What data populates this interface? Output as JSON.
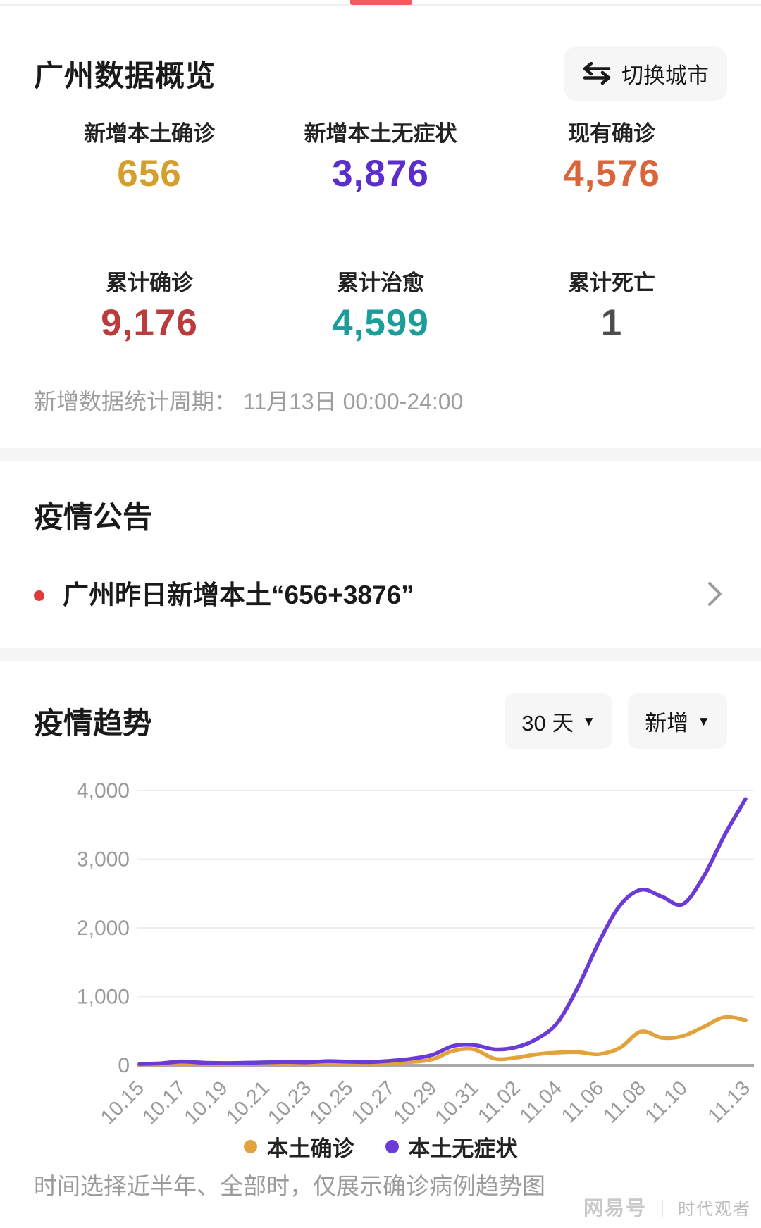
{
  "colors": {
    "accent_red": "#f15b5b",
    "bullet_red": "#e23a3a",
    "grid_line": "#ededed",
    "zero_axis": "#a8a8a8",
    "tick_text": "#9a9a9a"
  },
  "overview": {
    "title": "广州数据概览",
    "switch_city_label": "切换城市",
    "stats": [
      {
        "label": "新增本土确诊",
        "value": "656",
        "color": "#d4a02b"
      },
      {
        "label": "新增本土无症状",
        "value": "3,876",
        "color": "#5b2ecc"
      },
      {
        "label": "现有确诊",
        "value": "4,576",
        "color": "#d9653a"
      },
      {
        "label": "累计确诊",
        "value": "9,176",
        "color": "#ba3c3c"
      },
      {
        "label": "累计治愈",
        "value": "4,599",
        "color": "#1b9e99"
      },
      {
        "label": "累计死亡",
        "value": "1",
        "color": "#4d4d4d"
      }
    ],
    "period_note": "新增数据统计周期： 11月13日 00:00-24:00"
  },
  "announcement": {
    "heading": "疫情公告",
    "item_text": "广州昨日新增本土“656+3876”"
  },
  "trend": {
    "heading": "疫情趋势",
    "range_selector": "30 天",
    "mode_selector": "新增",
    "caret": "▼"
  },
  "chart_data": {
    "type": "line",
    "title": "疫情趋势（30天，新增）",
    "xlabel": "",
    "ylabel": "",
    "ylim": [
      0,
      4000
    ],
    "yticks": [
      0,
      1000,
      2000,
      3000,
      4000
    ],
    "ytick_labels": [
      "0",
      "1,000",
      "2,000",
      "3,000",
      "4,000"
    ],
    "grid": true,
    "legend_position": "bottom",
    "x": [
      "10.15",
      "10.16",
      "10.17",
      "10.18",
      "10.19",
      "10.20",
      "10.21",
      "10.22",
      "10.23",
      "10.24",
      "10.25",
      "10.26",
      "10.27",
      "10.28",
      "10.29",
      "10.30",
      "10.31",
      "11.01",
      "11.02",
      "11.03",
      "11.04",
      "11.05",
      "11.06",
      "11.07",
      "11.08",
      "11.09",
      "11.10",
      "11.11",
      "11.12",
      "11.13"
    ],
    "x_shown_ticks": [
      "10.15",
      "10.17",
      "10.19",
      "10.21",
      "10.23",
      "10.25",
      "10.27",
      "10.29",
      "10.31",
      "11.02",
      "11.04",
      "11.06",
      "11.08",
      "11.10",
      "11.13"
    ],
    "series": [
      {
        "name": "本土确诊",
        "color": "#e2a23c",
        "values": [
          8,
          10,
          20,
          12,
          10,
          12,
          15,
          20,
          16,
          26,
          22,
          19,
          27,
          48,
          85,
          210,
          232,
          95,
          110,
          160,
          185,
          190,
          162,
          255,
          490,
          400,
          425,
          560,
          700,
          656
        ]
      },
      {
        "name": "本土无症状",
        "color": "#6a3cd5",
        "values": [
          20,
          28,
          55,
          38,
          32,
          36,
          42,
          50,
          44,
          60,
          52,
          47,
          65,
          95,
          150,
          280,
          295,
          232,
          260,
          380,
          620,
          1150,
          1800,
          2330,
          2555,
          2455,
          2345,
          2750,
          3350,
          3876
        ]
      }
    ]
  },
  "footnote": "时间选择近半年、全部时，仅展示确诊病例趋势图",
  "watermark": {
    "brand": "网易号",
    "separator": "｜",
    "author": "时代观者"
  }
}
